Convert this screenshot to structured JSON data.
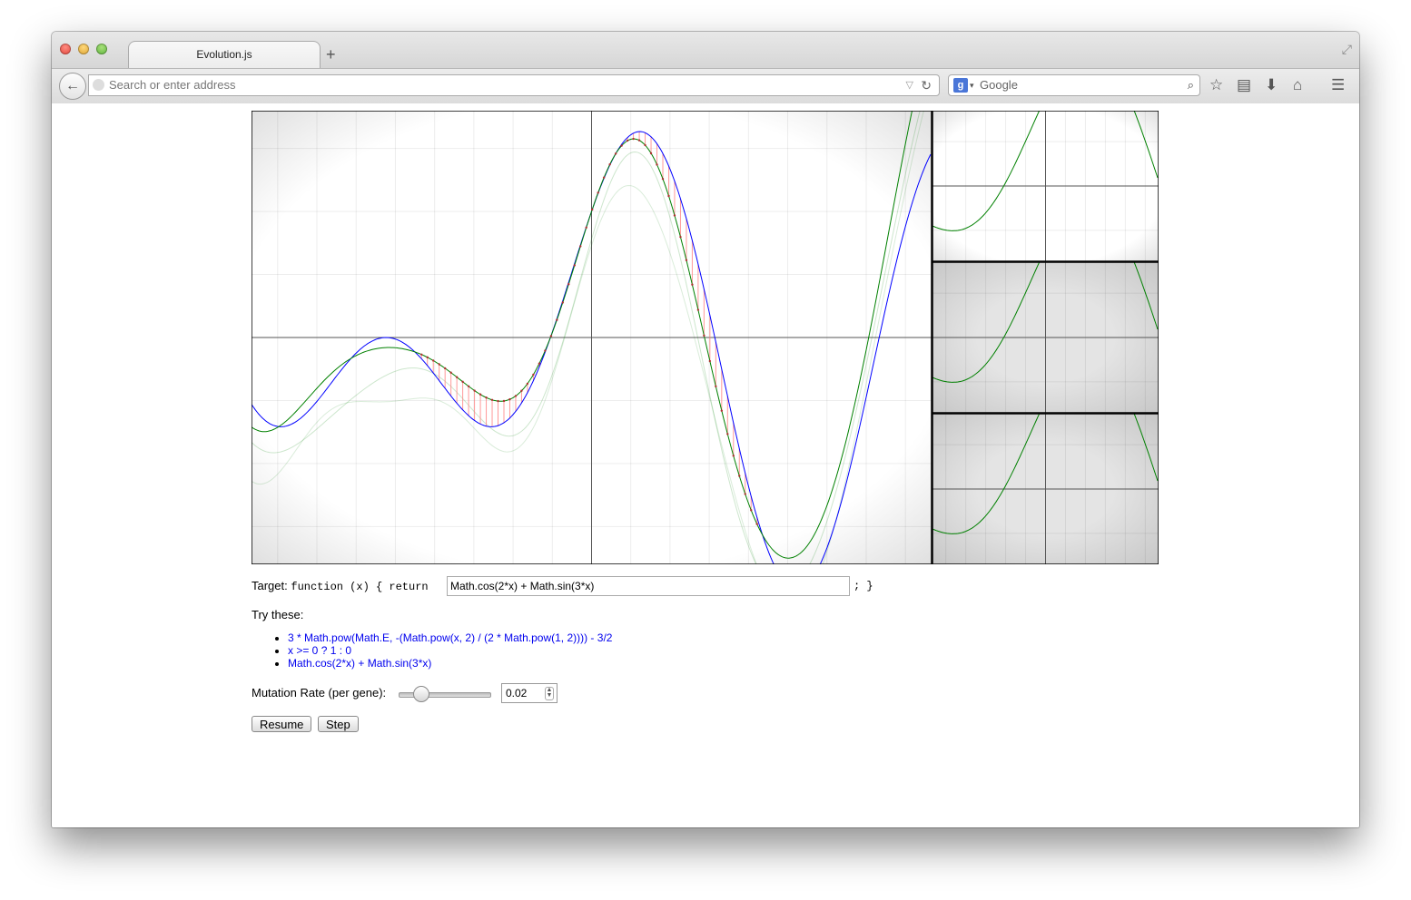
{
  "browser": {
    "tab_title": "Evolution.js",
    "new_tab": "+",
    "address_placeholder": "Search or enter address",
    "search_engine_letter": "g",
    "search_placeholder": "Google"
  },
  "target": {
    "label": "Target:",
    "code_prefix": "function (x) { return",
    "expression": "Math.cos(2*x) + Math.sin(3*x)",
    "code_suffix": "; }"
  },
  "examples": {
    "label": "Try these:",
    "items": [
      "3 * Math.pow(Math.E, -(Math.pow(x, 2) / (2 * Math.pow(1, 2)))) - 3/2",
      "x >= 0 ? 1 : 0",
      "Math.cos(2*x) + Math.sin(3*x)"
    ]
  },
  "mutation": {
    "label": "Mutation Rate (per gene):",
    "slider_fraction": 0.2,
    "value": "0.02"
  },
  "buttons": {
    "resume": "Resume",
    "step": "Step"
  },
  "colors": {
    "target_curve": "#0000ff",
    "best_curve": "#008000",
    "error_lines": "#ff8080"
  }
}
